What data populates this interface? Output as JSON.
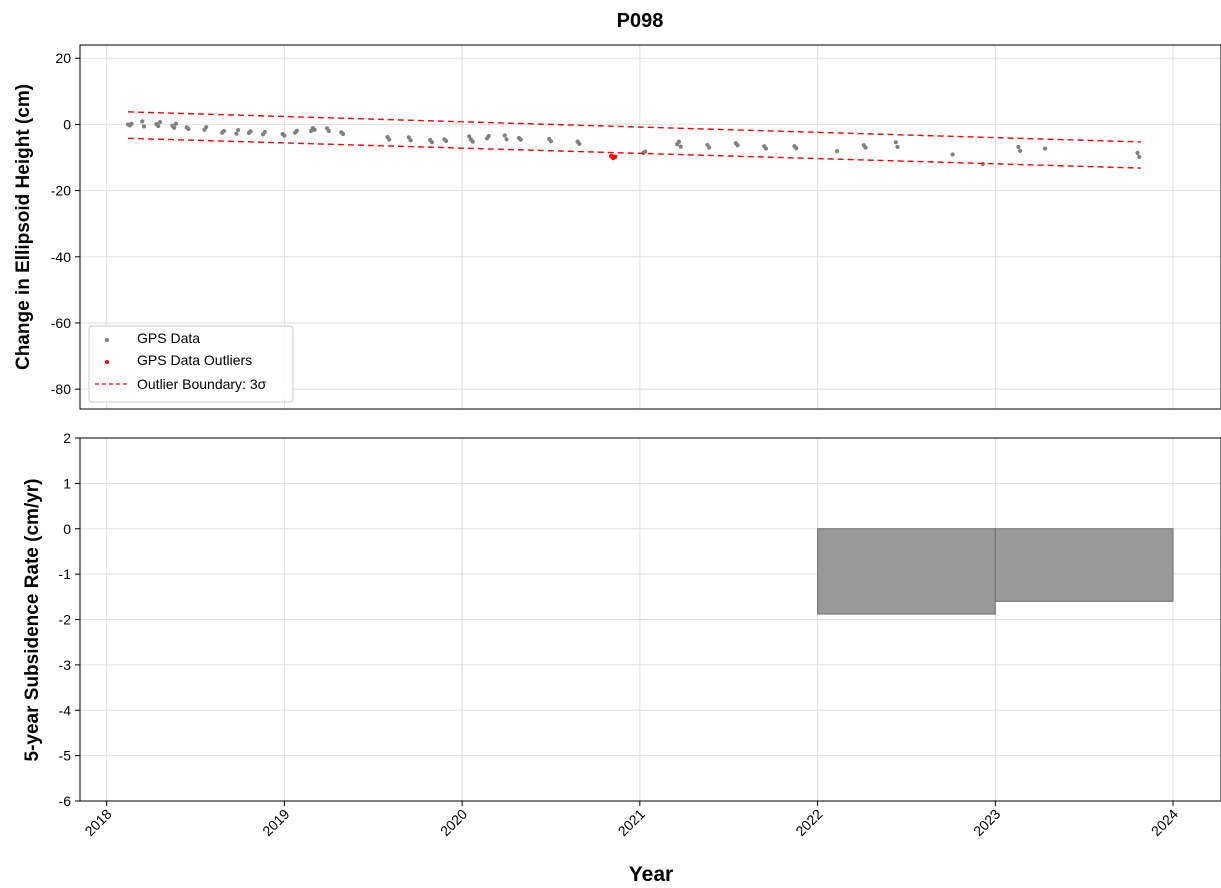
{
  "chart_data": {
    "type": "scatter",
    "title": "P098",
    "xlabel": "Year",
    "x_ticks": [
      "2018",
      "2019",
      "2020",
      "2021",
      "2022",
      "2023",
      "2024"
    ],
    "xlim": [
      2017.85,
      2024.27
    ],
    "grid": true,
    "panels": [
      {
        "id": "height",
        "ylabel": "Change in Ellipsoid Height (cm)",
        "ylim": [
          -86,
          24
        ],
        "y_ticks": [
          20,
          0,
          -20,
          -40,
          -60,
          -80
        ],
        "legend_position": "lower-left",
        "series": [
          {
            "name": "GPS Data",
            "kind": "scatter",
            "color": "#808080",
            "points": [
              [
                2018.12,
                0.0
              ],
              [
                2018.13,
                -0.3
              ],
              [
                2018.14,
                0.2
              ],
              [
                2018.2,
                0.9
              ],
              [
                2018.21,
                -0.6
              ],
              [
                2018.28,
                0.1
              ],
              [
                2018.29,
                -0.5
              ],
              [
                2018.3,
                0.7
              ],
              [
                2018.37,
                -0.4
              ],
              [
                2018.38,
                -1.0
              ],
              [
                2018.39,
                0.2
              ],
              [
                2018.45,
                -0.9
              ],
              [
                2018.46,
                -1.4
              ],
              [
                2018.55,
                -1.6
              ],
              [
                2018.56,
                -0.8
              ],
              [
                2018.65,
                -2.5
              ],
              [
                2018.66,
                -2.0
              ],
              [
                2018.73,
                -2.8
              ],
              [
                2018.74,
                -1.7
              ],
              [
                2018.8,
                -2.6
              ],
              [
                2018.81,
                -2.1
              ],
              [
                2018.88,
                -3.0
              ],
              [
                2018.89,
                -2.3
              ],
              [
                2018.99,
                -2.9
              ],
              [
                2019.0,
                -3.4
              ],
              [
                2019.06,
                -2.5
              ],
              [
                2019.07,
                -1.9
              ],
              [
                2019.15,
                -2.0
              ],
              [
                2019.16,
                -1.1
              ],
              [
                2019.17,
                -1.6
              ],
              [
                2019.24,
                -1.2
              ],
              [
                2019.25,
                -2.0
              ],
              [
                2019.32,
                -2.4
              ],
              [
                2019.33,
                -2.9
              ],
              [
                2019.58,
                -3.8
              ],
              [
                2019.59,
                -4.6
              ],
              [
                2019.7,
                -3.9
              ],
              [
                2019.71,
                -4.8
              ],
              [
                2019.82,
                -4.7
              ],
              [
                2019.83,
                -5.4
              ],
              [
                2019.9,
                -4.5
              ],
              [
                2019.91,
                -5.0
              ],
              [
                2020.04,
                -3.6
              ],
              [
                2020.05,
                -4.6
              ],
              [
                2020.06,
                -5.2
              ],
              [
                2020.14,
                -4.2
              ],
              [
                2020.15,
                -3.5
              ],
              [
                2020.24,
                -3.3
              ],
              [
                2020.25,
                -4.5
              ],
              [
                2020.32,
                -4.1
              ],
              [
                2020.33,
                -4.6
              ],
              [
                2020.49,
                -4.4
              ],
              [
                2020.5,
                -5.1
              ],
              [
                2020.65,
                -5.2
              ],
              [
                2020.66,
                -5.9
              ],
              [
                2021.02,
                -8.6
              ],
              [
                2021.03,
                -8.2
              ],
              [
                2021.21,
                -6.0
              ],
              [
                2021.22,
                -5.2
              ],
              [
                2021.23,
                -6.7
              ],
              [
                2021.38,
                -6.2
              ],
              [
                2021.39,
                -7.0
              ],
              [
                2021.54,
                -5.7
              ],
              [
                2021.55,
                -6.3
              ],
              [
                2021.7,
                -6.6
              ],
              [
                2021.71,
                -7.3
              ],
              [
                2021.87,
                -6.6
              ],
              [
                2021.88,
                -7.2
              ],
              [
                2022.11,
                -8.1
              ],
              [
                2022.26,
                -6.3
              ],
              [
                2022.27,
                -7.0
              ],
              [
                2022.44,
                -5.4
              ],
              [
                2022.45,
                -6.8
              ],
              [
                2022.76,
                -9.1
              ],
              [
                2022.93,
                -12.0
              ],
              [
                2023.13,
                -6.8
              ],
              [
                2023.14,
                -8.0
              ],
              [
                2023.28,
                -7.3
              ],
              [
                2023.8,
                -8.6
              ],
              [
                2023.81,
                -9.8
              ]
            ]
          },
          {
            "name": "GPS Data Outliers",
            "kind": "scatter",
            "color": "#ff0000",
            "points": [
              [
                2020.84,
                -9.6
              ],
              [
                2020.85,
                -10.1
              ],
              [
                2020.86,
                -9.8
              ]
            ]
          },
          {
            "name": "Outlier Boundary: 3σ",
            "kind": "dashed-line",
            "color": "#ff0000",
            "lines": [
              [
                [
                  2018.12,
                  3.8
                ],
                [
                  2023.82,
                  -5.3
                ]
              ],
              [
                [
                  2018.12,
                  -4.2
                ],
                [
                  2023.82,
                  -13.2
                ]
              ]
            ]
          }
        ]
      },
      {
        "id": "rate",
        "ylabel": "5-year Subsidence Rate (cm/yr)",
        "ylim": [
          -6,
          2
        ],
        "y_ticks": [
          2,
          1,
          0,
          -1,
          -2,
          -3,
          -4,
          -5,
          -6
        ],
        "series": [
          {
            "kind": "step-fill",
            "color": "#999999",
            "edge_color": "#707070",
            "segments": [
              {
                "x0": 2022.0,
                "x1": 2023.0,
                "value": -1.88
              },
              {
                "x0": 2023.0,
                "x1": 2024.0,
                "value": -1.6
              }
            ]
          }
        ]
      }
    ]
  }
}
